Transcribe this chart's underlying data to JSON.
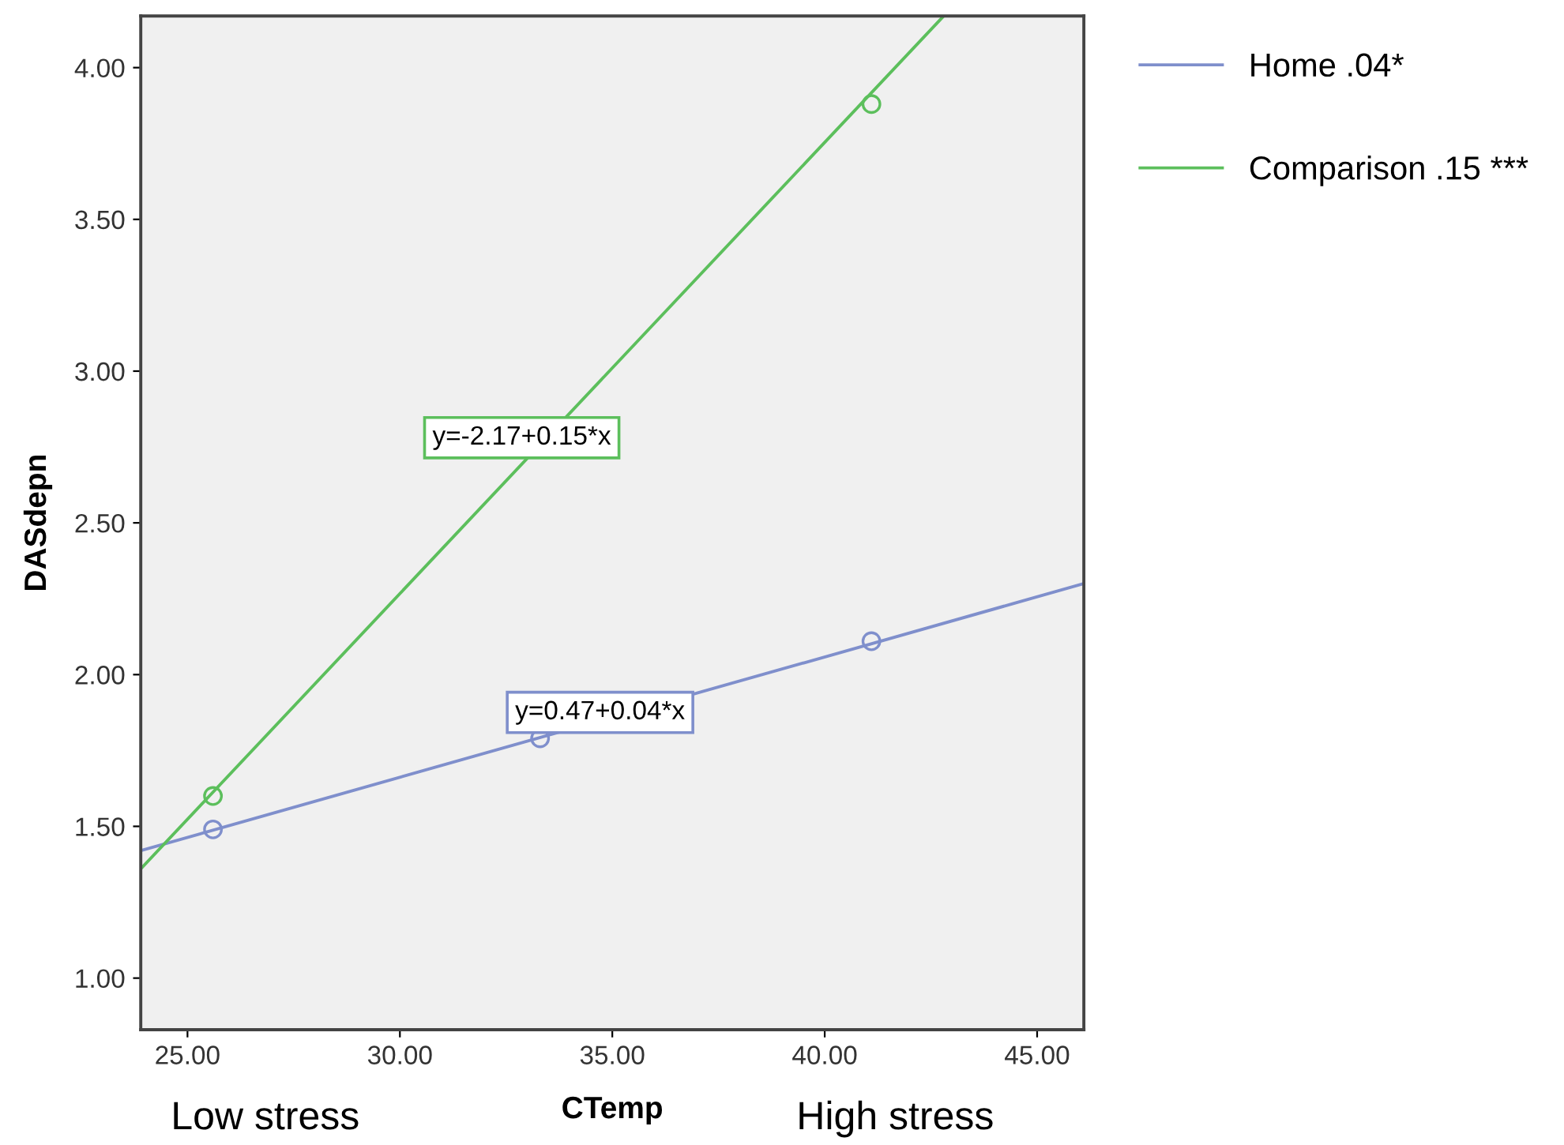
{
  "chart_data": {
    "type": "line",
    "xlabel": "CTemp",
    "ylabel": "DASdepn",
    "xlim": [
      23.9,
      46.1
    ],
    "xticks": [
      {
        "value": 25,
        "label": "25.00"
      },
      {
        "value": 30,
        "label": "30.00"
      },
      {
        "value": 35,
        "label": "35.00"
      },
      {
        "value": 40,
        "label": "40.00"
      },
      {
        "value": 45,
        "label": "45.00"
      }
    ],
    "ylim": [
      0.83,
      4.17
    ],
    "yticks": [
      {
        "value": 1,
        "label": "1.00"
      },
      {
        "value": 1.5,
        "label": "1.50"
      },
      {
        "value": 2,
        "label": "2.00"
      },
      {
        "value": 2.5,
        "label": "2.50"
      },
      {
        "value": 3,
        "label": "3.00"
      },
      {
        "value": 3.5,
        "label": "3.50"
      },
      {
        "value": 4,
        "label": "4.00"
      }
    ],
    "series": [
      {
        "name": "Home .04*",
        "color": "#7f8fcc",
        "x": [
          23.9,
          46.1
        ],
        "values": [
          1.42,
          2.3
        ]
      },
      {
        "name": "Comparison .15 ***",
        "color": "#5cbf5c",
        "x": [
          23.9,
          42.8
        ],
        "values": [
          1.36,
          4.17
        ]
      },
      {
        "type": "scatter",
        "marker": "circle",
        "color": "#7f8fcc",
        "x": [
          25.6,
          33.3,
          41.1
        ],
        "values": [
          1.49,
          1.79,
          2.11
        ]
      },
      {
        "type": "scatter",
        "marker": "circle",
        "color": "#5cbf5c",
        "x": [
          25.6,
          41.1
        ],
        "values": [
          1.6,
          3.88
        ]
      }
    ],
    "annotations": [
      "y=-2.17+0.15*x",
      "y=0.47+0.04*x",
      "Low stress",
      "High stress"
    ],
    "legend": "right",
    "grid": false
  }
}
